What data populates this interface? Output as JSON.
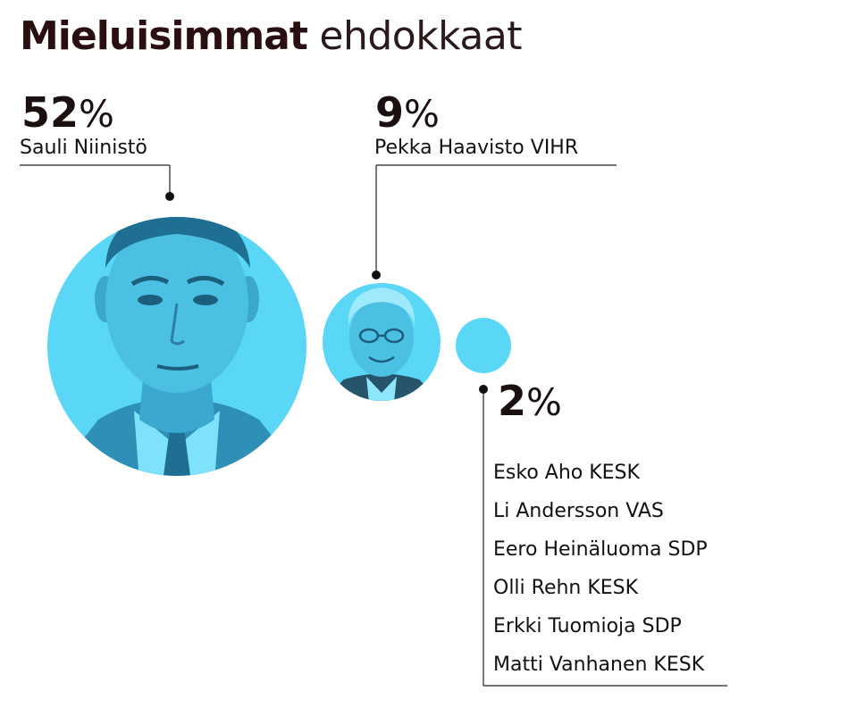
{
  "title": {
    "bold": "Mieluisimmat",
    "light": "ehdokkaat"
  },
  "colors": {
    "bubble": "#5ad6f7",
    "text": "#1b0f10"
  },
  "chart_data": {
    "type": "bubble",
    "title": "Mieluisimmat ehdokkaat",
    "unit": "%",
    "series": [
      {
        "value": 52,
        "value_label": "52",
        "candidates": [
          "Sauli Niinistö"
        ],
        "photo": "portrait-niinisto"
      },
      {
        "value": 9,
        "value_label": "9",
        "candidates": [
          "Pekka Haavisto VIHR"
        ],
        "photo": "portrait-haavisto"
      },
      {
        "value": 2,
        "value_label": "2",
        "candidates": [
          "Esko Aho KESK",
          "Li Andersson VAS",
          "Eero Heinäluoma SDP",
          "Olli Rehn KESK",
          "Erkki Tuomioja SDP",
          "Matti Vanhanen KESK"
        ],
        "photo": ""
      }
    ]
  }
}
